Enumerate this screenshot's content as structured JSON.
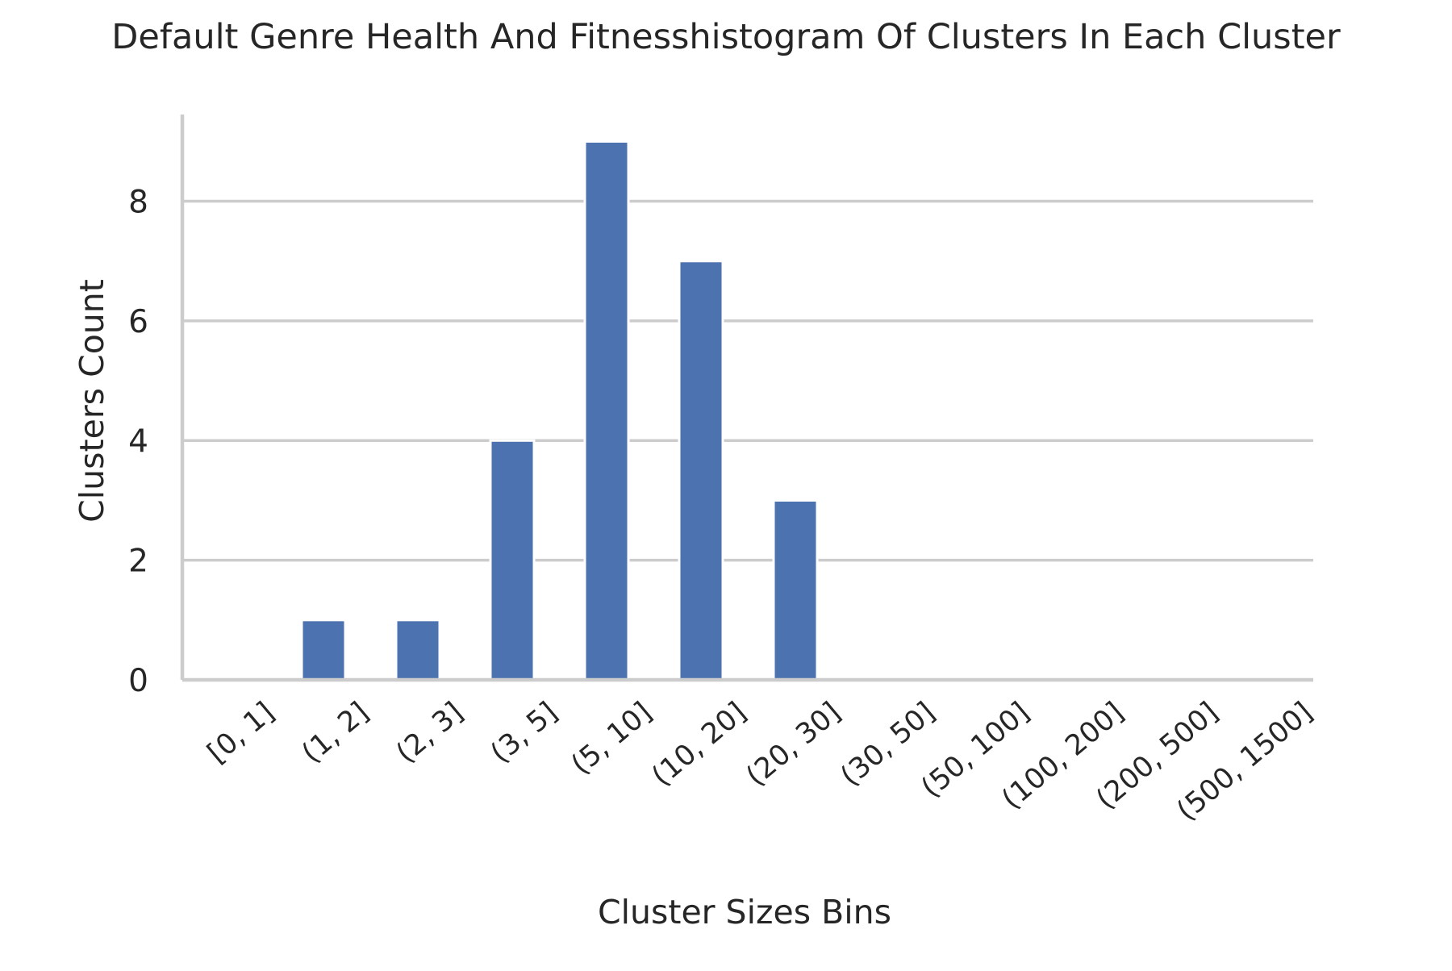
{
  "chart_data": {
    "type": "bar",
    "title": "Default Genre Health And Fitnesshistogram Of Clusters In Each Cluster",
    "xlabel": "Cluster Sizes Bins",
    "ylabel": "Clusters Count",
    "categories": [
      "[0, 1]",
      "(1, 2]",
      "(2, 3]",
      "(3, 5]",
      "(5, 10]",
      "(10, 20]",
      "(20, 30]",
      "(30, 50]",
      "(50, 100]",
      "(100, 200]",
      "(200, 500]",
      "(500, 1500]"
    ],
    "values": [
      0,
      1,
      1,
      4,
      9,
      7,
      3,
      0,
      0,
      0,
      0,
      0
    ],
    "yticks": [
      0,
      2,
      4,
      6,
      8
    ],
    "ylim": [
      0,
      9.45
    ],
    "grid": "horizontal",
    "legend": "none",
    "bar_color": "#4c72b0",
    "grid_color": "#cccccc"
  }
}
